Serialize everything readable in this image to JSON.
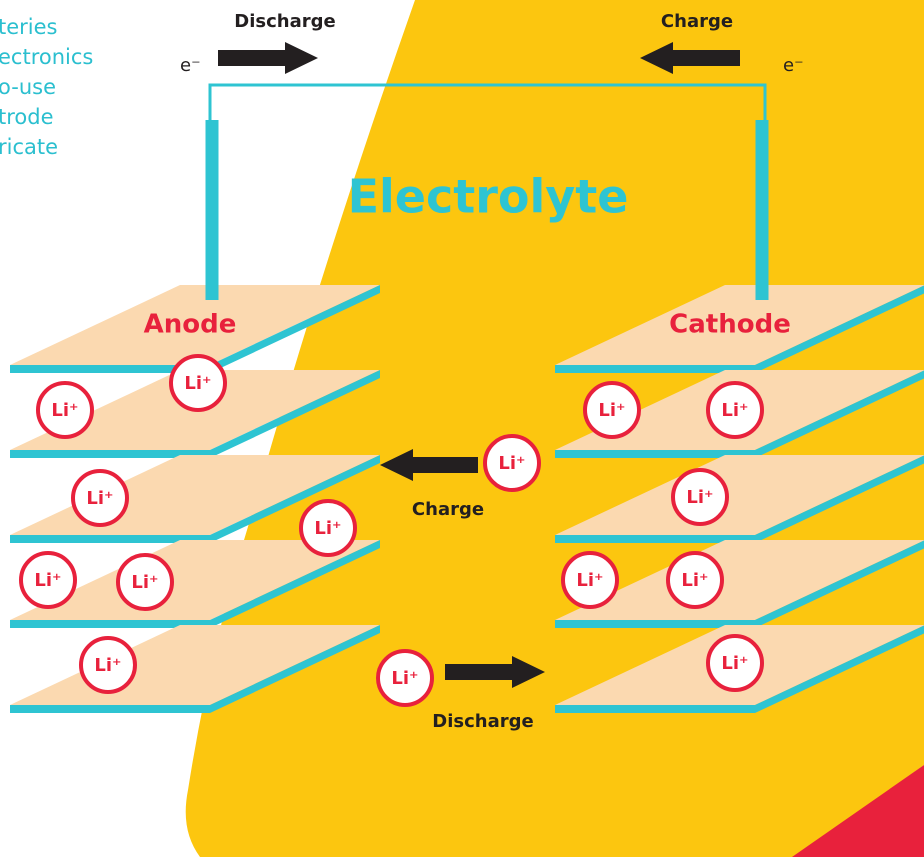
{
  "side_text": [
    "teries",
    "ectronics",
    "o-use",
    "trode",
    "ricate"
  ],
  "top": {
    "discharge": "Discharge",
    "charge": "Charge",
    "electron_left": "e⁻",
    "electron_right": "e⁻"
  },
  "electrolyte": "Electrolyte",
  "anode": "Anode",
  "cathode": "Cathode",
  "middle": {
    "charge": "Charge",
    "discharge": "Discharge"
  },
  "ions": [
    "Li⁺",
    "Li⁺",
    "Li⁺",
    "Li⁺",
    "Li⁺",
    "Li⁺",
    "Li⁺",
    "Li⁺",
    "Li⁺",
    "Li⁺",
    "Li⁺",
    "Li⁺",
    "Li⁺",
    "Li⁺",
    "Li⁺"
  ]
}
